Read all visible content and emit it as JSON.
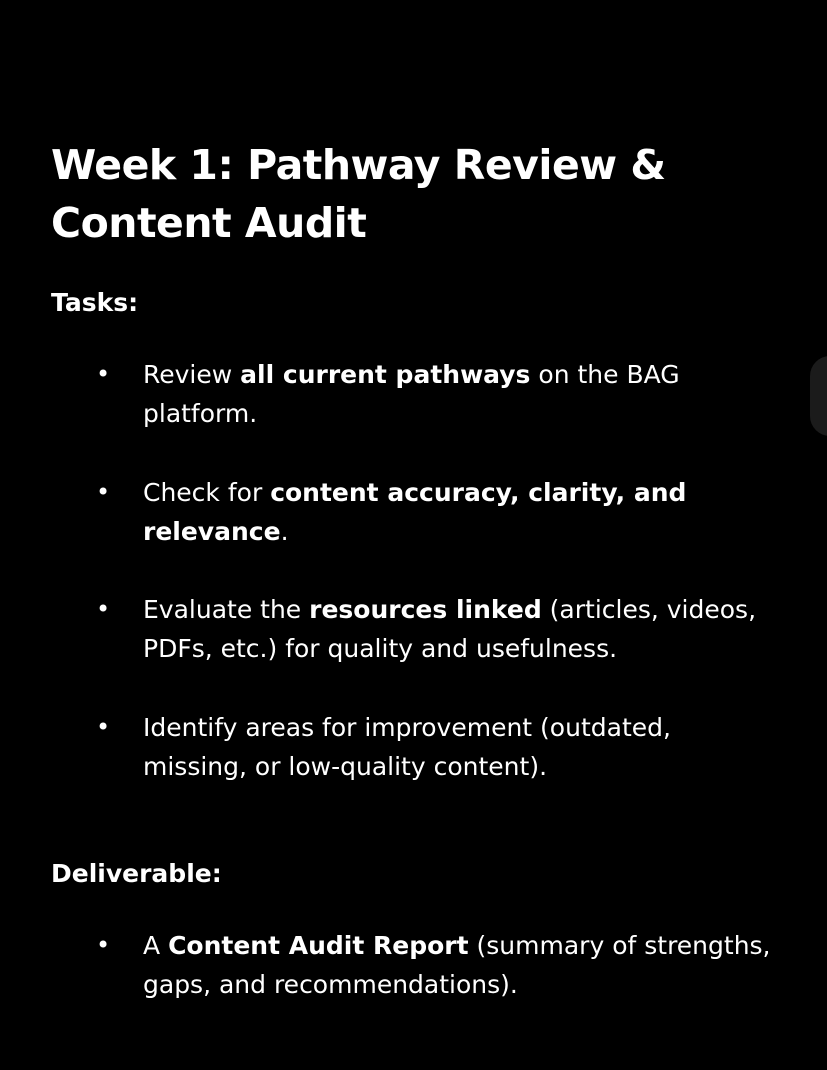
{
  "title": "Week 1: Pathway Review & Content Audit",
  "tasks": {
    "heading": "Tasks:",
    "bullet": "•",
    "items": [
      {
        "parts": [
          {
            "text": "Review ",
            "bold": false
          },
          {
            "text": "all current pathways",
            "bold": true
          },
          {
            "text": " on the BAG platform.",
            "bold": false
          }
        ]
      },
      {
        "parts": [
          {
            "text": "Check for ",
            "bold": false
          },
          {
            "text": "content accuracy, clarity, and relevance",
            "bold": true
          },
          {
            "text": ".",
            "bold": false
          }
        ]
      },
      {
        "parts": [
          {
            "text": "Evaluate the ",
            "bold": false
          },
          {
            "text": "resources linked",
            "bold": true
          },
          {
            "text": " (articles, videos, PDFs, etc.) for quality and usefulness.",
            "bold": false
          }
        ]
      },
      {
        "parts": [
          {
            "text": "Identify areas for improvement (outdated, missing, or low-quality content).",
            "bold": false
          }
        ]
      }
    ]
  },
  "deliverable": {
    "heading": "Deliverable:",
    "items": [
      {
        "parts": [
          {
            "text": "A ",
            "bold": false
          },
          {
            "text": "Content Audit Report",
            "bold": true
          },
          {
            "text": " (summary of strengths, gaps, and recommendations).",
            "bold": false
          }
        ]
      }
    ]
  }
}
